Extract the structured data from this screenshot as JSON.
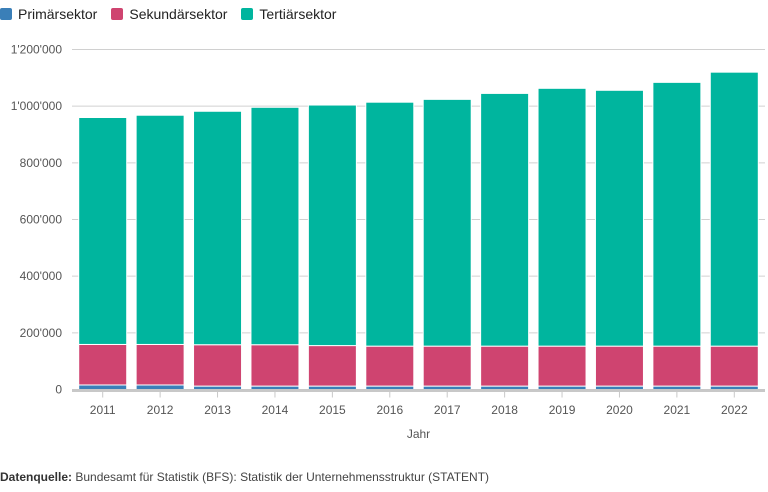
{
  "chart_data": {
    "type": "bar",
    "stacked": true,
    "xlabel": "Jahr",
    "ylabel": "",
    "ylim": [
      0,
      1200000
    ],
    "yticks": [
      "0",
      "200'000",
      "400'000",
      "600'000",
      "800'000",
      "1'000'000",
      "1'200'000"
    ],
    "ytick_values": [
      0,
      200000,
      400000,
      600000,
      800000,
      1000000,
      1200000
    ],
    "grid": true,
    "legend": "top-left",
    "categories": [
      "2011",
      "2012",
      "2013",
      "2014",
      "2015",
      "2016",
      "2017",
      "2018",
      "2019",
      "2020",
      "2021",
      "2022"
    ],
    "series": [
      {
        "name": "Primärsektor",
        "color": "#3a7fb8",
        "values": [
          16000,
          16000,
          12000,
          12000,
          12000,
          12000,
          12000,
          12000,
          12000,
          12000,
          12000,
          12000
        ]
      },
      {
        "name": "Sekundärsektor",
        "color": "#cf4470",
        "values": [
          143000,
          143000,
          146000,
          146000,
          143000,
          141000,
          141000,
          141000,
          141000,
          141000,
          141000,
          141000
        ]
      },
      {
        "name": "Tertiärsektor",
        "color": "#00b59e",
        "values": [
          801000,
          809000,
          824000,
          838000,
          849000,
          861000,
          871000,
          892000,
          910000,
          903000,
          931000,
          967000
        ]
      }
    ]
  },
  "source": {
    "label": "Datenquelle:",
    "text": " Bundesamt für Statistik (BFS): Statistik der Unternehmensstruktur (STATENT)"
  }
}
